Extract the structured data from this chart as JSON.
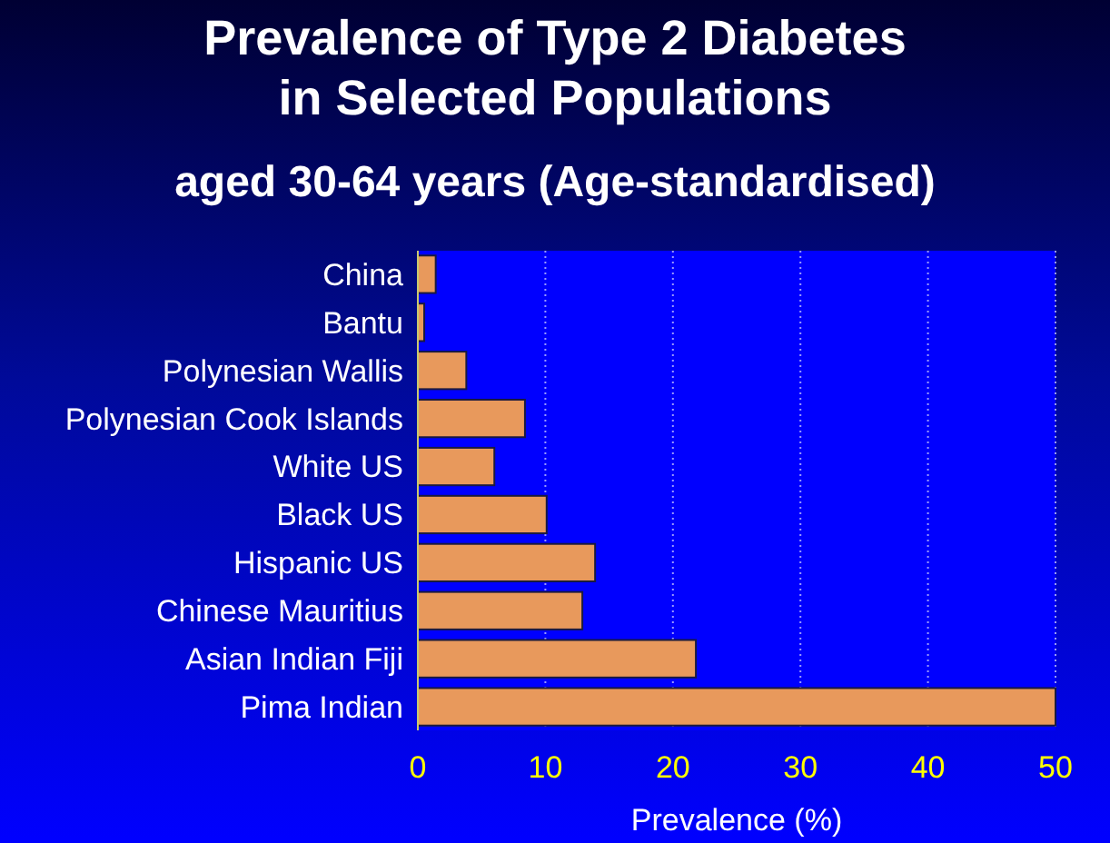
{
  "chart_data": {
    "type": "bar",
    "orientation": "horizontal",
    "title": "Prevalence of Type 2 Diabetes in Selected Populations",
    "subtitle": "aged 30-64 years (Age-standardised)",
    "xlabel": "Prevalence (%)",
    "categories": [
      "China",
      "Bantu",
      "Polynesian Wallis",
      "Polynesian Cook Islands",
      "White US",
      "Black US",
      "Hispanic US",
      "Chinese Mauritius",
      "Asian Indian Fiji",
      "Pima Indian"
    ],
    "values": [
      1.4,
      0.5,
      3.8,
      8.4,
      6.0,
      10.1,
      13.9,
      12.9,
      21.8,
      50
    ],
    "color": "#e8995c",
    "xlim": [
      0,
      50
    ],
    "xticks": [
      0,
      10,
      20,
      30,
      40,
      50
    ],
    "grid": "x"
  }
}
